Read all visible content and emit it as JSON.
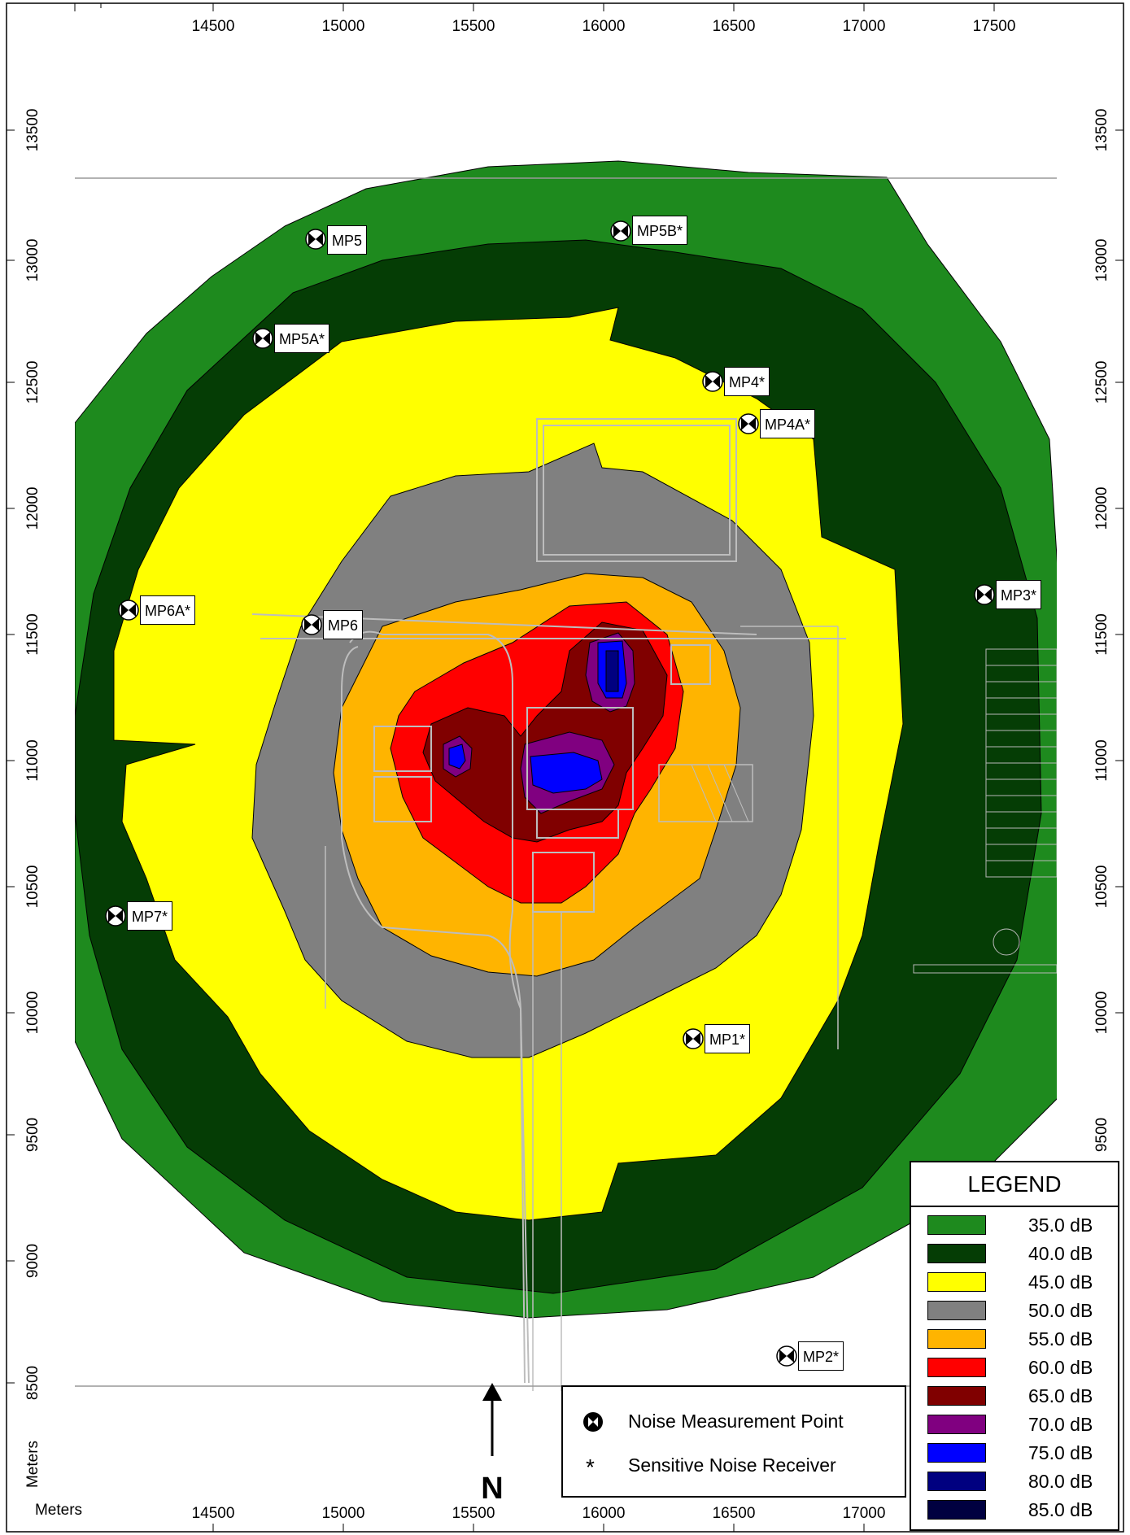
{
  "axes": {
    "x_ticks_top": [
      "14500",
      "15000",
      "15500",
      "16000",
      "16500",
      "17000",
      "17500"
    ],
    "x_ticks_bottom": [
      "14500",
      "15000",
      "15500",
      "16000",
      "16500",
      "17000"
    ],
    "y_ticks": [
      "8500",
      "9000",
      "9500",
      "10000",
      "10500",
      "11000",
      "11500",
      "12000",
      "12500",
      "13000",
      "13500"
    ],
    "y_unit_label": "Meters",
    "x_unit_label": "Meters"
  },
  "north_label": "N",
  "measurement_points": [
    {
      "label": "MP5"
    },
    {
      "label": "MP5B*"
    },
    {
      "label": "MP5A*"
    },
    {
      "label": "MP4*"
    },
    {
      "label": "MP4A*"
    },
    {
      "label": "MP3*"
    },
    {
      "label": "MP6A*"
    },
    {
      "label": "MP6"
    },
    {
      "label": "MP7*"
    },
    {
      "label": "MP1*"
    },
    {
      "label": "MP2*"
    }
  ],
  "legend": {
    "title": "LEGEND",
    "items": [
      {
        "label": "35.0 dB",
        "color": "#1e8a1e"
      },
      {
        "label": "40.0 dB",
        "color": "#053d05"
      },
      {
        "label": "45.0 dB",
        "color": "#ffff00"
      },
      {
        "label": "50.0 dB",
        "color": "#808080"
      },
      {
        "label": "55.0 dB",
        "color": "#ffb400"
      },
      {
        "label": "60.0 dB",
        "color": "#ff0000"
      },
      {
        "label": "65.0 dB",
        "color": "#800000"
      },
      {
        "label": "70.0 dB",
        "color": "#800080"
      },
      {
        "label": "75.0 dB",
        "color": "#0000ff"
      },
      {
        "label": "80.0 dB",
        "color": "#000080"
      },
      {
        "label": "85.0 dB",
        "color": "#000040"
      }
    ]
  },
  "key": {
    "measurement_point_label": "Noise Measurement Point",
    "receiver_symbol": "*",
    "receiver_label": "Sensitive Noise Receiver"
  }
}
